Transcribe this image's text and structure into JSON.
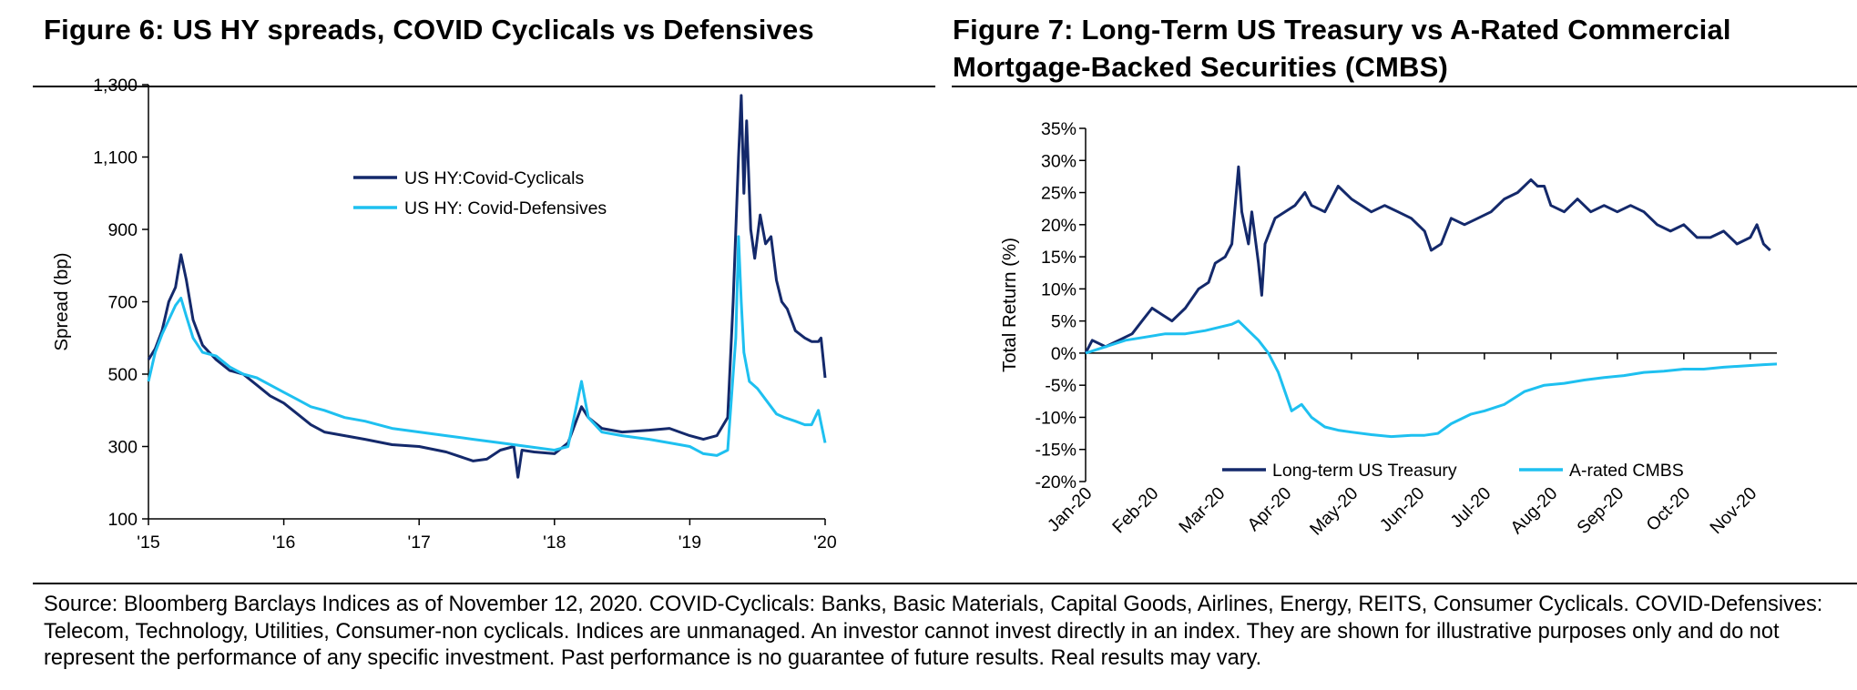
{
  "figures": {
    "left_title": "Figure 6: US HY spreads, COVID Cyclicals vs Defensives",
    "right_title_line1": "Figure 7: Long-Term US Treasury vs A-Rated Commercial",
    "right_title_line2": "Mortgage-Backed Securities (CMBS)"
  },
  "source_note": "Source: Bloomberg Barclays Indices as of November 12, 2020. COVID-Cyclicals: Banks, Basic Materials, Capital Goods, Airlines, Energy, REITS, Consumer Cyclicals. COVID-Defensives: Telecom, Technology, Utilities, Consumer-non cyclicals. Indices are unmanaged. An investor cannot invest directly in an index. They are shown for illustrative purposes only and do not represent the performance of any specific investment. Past performance is no guarantee of future results. Real results may vary.",
  "colors": {
    "dark_navy": "#14296b",
    "light_blue": "#1ec0f0",
    "axis": "#000000"
  },
  "chart_data": [
    {
      "type": "line",
      "ylabel": "Spread (bp)",
      "xlabel": "",
      "ylim": [
        100,
        1300
      ],
      "yticks": [
        100,
        300,
        500,
        700,
        900,
        1100,
        1300
      ],
      "ytick_labels": [
        "100",
        "300",
        "500",
        "700",
        "900",
        "1,100",
        "1,300"
      ],
      "xlim": [
        2015.0,
        2020.0
      ],
      "xticks": [
        2015,
        2016,
        2017,
        2018,
        2019,
        2020
      ],
      "xtick_labels": [
        "'15",
        "'16",
        "'17",
        "'18",
        "'19",
        "'20"
      ],
      "legend_position": "upper-center",
      "grid": false,
      "series": [
        {
          "name": "US HY:Covid-Cyclicals",
          "color": "#14296b",
          "points": [
            [
              2015.0,
              540
            ],
            [
              2015.05,
              570
            ],
            [
              2015.1,
              620
            ],
            [
              2015.15,
              700
            ],
            [
              2015.2,
              740
            ],
            [
              2015.24,
              830
            ],
            [
              2015.28,
              760
            ],
            [
              2015.33,
              650
            ],
            [
              2015.4,
              580
            ],
            [
              2015.5,
              540
            ],
            [
              2015.6,
              510
            ],
            [
              2015.7,
              500
            ],
            [
              2015.8,
              470
            ],
            [
              2015.9,
              440
            ],
            [
              2016.0,
              420
            ],
            [
              2016.1,
              390
            ],
            [
              2016.2,
              360
            ],
            [
              2016.3,
              340
            ],
            [
              2016.45,
              330
            ],
            [
              2016.6,
              320
            ],
            [
              2016.8,
              305
            ],
            [
              2017.0,
              300
            ],
            [
              2017.2,
              285
            ],
            [
              2017.4,
              260
            ],
            [
              2017.5,
              265
            ],
            [
              2017.6,
              290
            ],
            [
              2017.7,
              300
            ],
            [
              2017.73,
              215
            ],
            [
              2017.76,
              290
            ],
            [
              2017.85,
              285
            ],
            [
              2018.0,
              280
            ],
            [
              2018.1,
              310
            ],
            [
              2018.2,
              410
            ],
            [
              2018.25,
              380
            ],
            [
              2018.35,
              350
            ],
            [
              2018.5,
              340
            ],
            [
              2018.7,
              345
            ],
            [
              2018.85,
              350
            ],
            [
              2019.0,
              330
            ],
            [
              2019.1,
              320
            ],
            [
              2019.2,
              330
            ],
            [
              2019.28,
              380
            ],
            [
              2019.32,
              700
            ],
            [
              2019.36,
              1100
            ],
            [
              2019.38,
              1270
            ],
            [
              2019.4,
              1000
            ],
            [
              2019.42,
              1200
            ],
            [
              2019.45,
              900
            ],
            [
              2019.48,
              820
            ],
            [
              2019.52,
              940
            ],
            [
              2019.56,
              860
            ],
            [
              2019.6,
              880
            ],
            [
              2019.64,
              760
            ],
            [
              2019.68,
              700
            ],
            [
              2019.72,
              680
            ],
            [
              2019.78,
              620
            ],
            [
              2019.85,
              600
            ],
            [
              2019.9,
              590
            ],
            [
              2019.95,
              590
            ],
            [
              2019.97,
              600
            ],
            [
              2020.0,
              490
            ]
          ]
        },
        {
          "name": "US HY: Covid-Defensives",
          "color": "#1ec0f0",
          "points": [
            [
              2015.0,
              480
            ],
            [
              2015.05,
              560
            ],
            [
              2015.1,
              610
            ],
            [
              2015.15,
              650
            ],
            [
              2015.2,
              690
            ],
            [
              2015.24,
              710
            ],
            [
              2015.28,
              660
            ],
            [
              2015.33,
              600
            ],
            [
              2015.4,
              560
            ],
            [
              2015.5,
              550
            ],
            [
              2015.6,
              520
            ],
            [
              2015.7,
              500
            ],
            [
              2015.8,
              490
            ],
            [
              2015.9,
              470
            ],
            [
              2016.0,
              450
            ],
            [
              2016.1,
              430
            ],
            [
              2016.2,
              410
            ],
            [
              2016.3,
              400
            ],
            [
              2016.45,
              380
            ],
            [
              2016.6,
              370
            ],
            [
              2016.8,
              350
            ],
            [
              2017.0,
              340
            ],
            [
              2017.2,
              330
            ],
            [
              2017.4,
              320
            ],
            [
              2017.6,
              310
            ],
            [
              2017.8,
              300
            ],
            [
              2018.0,
              290
            ],
            [
              2018.1,
              300
            ],
            [
              2018.2,
              480
            ],
            [
              2018.25,
              380
            ],
            [
              2018.35,
              340
            ],
            [
              2018.5,
              330
            ],
            [
              2018.7,
              320
            ],
            [
              2018.85,
              310
            ],
            [
              2019.0,
              300
            ],
            [
              2019.1,
              280
            ],
            [
              2019.2,
              275
            ],
            [
              2019.28,
              290
            ],
            [
              2019.32,
              500
            ],
            [
              2019.34,
              600
            ],
            [
              2019.36,
              880
            ],
            [
              2019.38,
              700
            ],
            [
              2019.4,
              560
            ],
            [
              2019.44,
              480
            ],
            [
              2019.5,
              460
            ],
            [
              2019.56,
              430
            ],
            [
              2019.6,
              410
            ],
            [
              2019.64,
              390
            ],
            [
              2019.7,
              380
            ],
            [
              2019.78,
              370
            ],
            [
              2019.85,
              360
            ],
            [
              2019.9,
              360
            ],
            [
              2019.95,
              400
            ],
            [
              2020.0,
              310
            ]
          ]
        }
      ]
    },
    {
      "type": "line",
      "ylabel": "Total Return (%)",
      "xlabel": "",
      "ylim": [
        -20,
        35
      ],
      "yticks": [
        -20,
        -15,
        -10,
        -5,
        0,
        5,
        10,
        15,
        20,
        25,
        30,
        35
      ],
      "ytick_labels": [
        "-20%",
        "-15%",
        "-10%",
        "-5%",
        "0%",
        "5%",
        "10%",
        "15%",
        "20%",
        "25%",
        "30%",
        "35%"
      ],
      "xlim": [
        0,
        10.4
      ],
      "xticks": [
        0,
        1,
        2,
        3,
        4,
        5,
        6,
        7,
        8,
        9,
        10
      ],
      "xtick_labels": [
        "Jan-20",
        "Feb-20",
        "Mar-20",
        "Apr-20",
        "May-20",
        "Jun-20",
        "Jul-20",
        "Aug-20",
        "Sep-20",
        "Oct-20",
        "Nov-20"
      ],
      "legend_position": "bottom",
      "grid": false,
      "series": [
        {
          "name": "Long-term US Treasury",
          "color": "#14296b",
          "points": [
            [
              0,
              0
            ],
            [
              0.1,
              2
            ],
            [
              0.3,
              1
            ],
            [
              0.5,
              2
            ],
            [
              0.7,
              3
            ],
            [
              0.85,
              5
            ],
            [
              1.0,
              7
            ],
            [
              1.15,
              6
            ],
            [
              1.3,
              5
            ],
            [
              1.5,
              7
            ],
            [
              1.7,
              10
            ],
            [
              1.85,
              11
            ],
            [
              1.95,
              14
            ],
            [
              2.1,
              15
            ],
            [
              2.2,
              17
            ],
            [
              2.3,
              29
            ],
            [
              2.35,
              22
            ],
            [
              2.45,
              17
            ],
            [
              2.5,
              22
            ],
            [
              2.6,
              14
            ],
            [
              2.65,
              9
            ],
            [
              2.7,
              17
            ],
            [
              2.85,
              21
            ],
            [
              3.0,
              22
            ],
            [
              3.15,
              23
            ],
            [
              3.3,
              25
            ],
            [
              3.4,
              23
            ],
            [
              3.6,
              22
            ],
            [
              3.8,
              26
            ],
            [
              4.0,
              24
            ],
            [
              4.3,
              22
            ],
            [
              4.5,
              23
            ],
            [
              4.7,
              22
            ],
            [
              4.9,
              21
            ],
            [
              5.1,
              19
            ],
            [
              5.2,
              16
            ],
            [
              5.35,
              17
            ],
            [
              5.5,
              21
            ],
            [
              5.7,
              20
            ],
            [
              5.9,
              21
            ],
            [
              6.1,
              22
            ],
            [
              6.3,
              24
            ],
            [
              6.5,
              25
            ],
            [
              6.7,
              27
            ],
            [
              6.8,
              26
            ],
            [
              6.9,
              26
            ],
            [
              7.0,
              23
            ],
            [
              7.2,
              22
            ],
            [
              7.4,
              24
            ],
            [
              7.6,
              22
            ],
            [
              7.8,
              23
            ],
            [
              8.0,
              22
            ],
            [
              8.2,
              23
            ],
            [
              8.4,
              22
            ],
            [
              8.6,
              20
            ],
            [
              8.8,
              19
            ],
            [
              9.0,
              20
            ],
            [
              9.2,
              18
            ],
            [
              9.4,
              18
            ],
            [
              9.6,
              19
            ],
            [
              9.8,
              17
            ],
            [
              10.0,
              18
            ],
            [
              10.1,
              20
            ],
            [
              10.2,
              17
            ],
            [
              10.3,
              16
            ]
          ]
        },
        {
          "name": "A-rated CMBS",
          "color": "#1ec0f0",
          "points": [
            [
              0,
              0
            ],
            [
              0.3,
              1
            ],
            [
              0.6,
              2
            ],
            [
              0.9,
              2.5
            ],
            [
              1.2,
              3
            ],
            [
              1.5,
              3
            ],
            [
              1.8,
              3.5
            ],
            [
              2.0,
              4
            ],
            [
              2.2,
              4.5
            ],
            [
              2.3,
              5
            ],
            [
              2.45,
              3.5
            ],
            [
              2.6,
              2
            ],
            [
              2.75,
              0
            ],
            [
              2.9,
              -3
            ],
            [
              3.0,
              -6
            ],
            [
              3.1,
              -9
            ],
            [
              3.25,
              -8
            ],
            [
              3.4,
              -10
            ],
            [
              3.6,
              -11.5
            ],
            [
              3.8,
              -12
            ],
            [
              4.0,
              -12.3
            ],
            [
              4.3,
              -12.7
            ],
            [
              4.6,
              -13
            ],
            [
              4.9,
              -12.8
            ],
            [
              5.1,
              -12.8
            ],
            [
              5.3,
              -12.5
            ],
            [
              5.5,
              -11
            ],
            [
              5.8,
              -9.5
            ],
            [
              6.0,
              -9
            ],
            [
              6.3,
              -8
            ],
            [
              6.6,
              -6
            ],
            [
              6.9,
              -5
            ],
            [
              7.2,
              -4.7
            ],
            [
              7.5,
              -4.2
            ],
            [
              7.8,
              -3.8
            ],
            [
              8.1,
              -3.5
            ],
            [
              8.4,
              -3
            ],
            [
              8.7,
              -2.8
            ],
            [
              9.0,
              -2.5
            ],
            [
              9.3,
              -2.5
            ],
            [
              9.6,
              -2.2
            ],
            [
              9.9,
              -2
            ],
            [
              10.2,
              -1.8
            ],
            [
              10.4,
              -1.7
            ]
          ]
        }
      ]
    }
  ]
}
